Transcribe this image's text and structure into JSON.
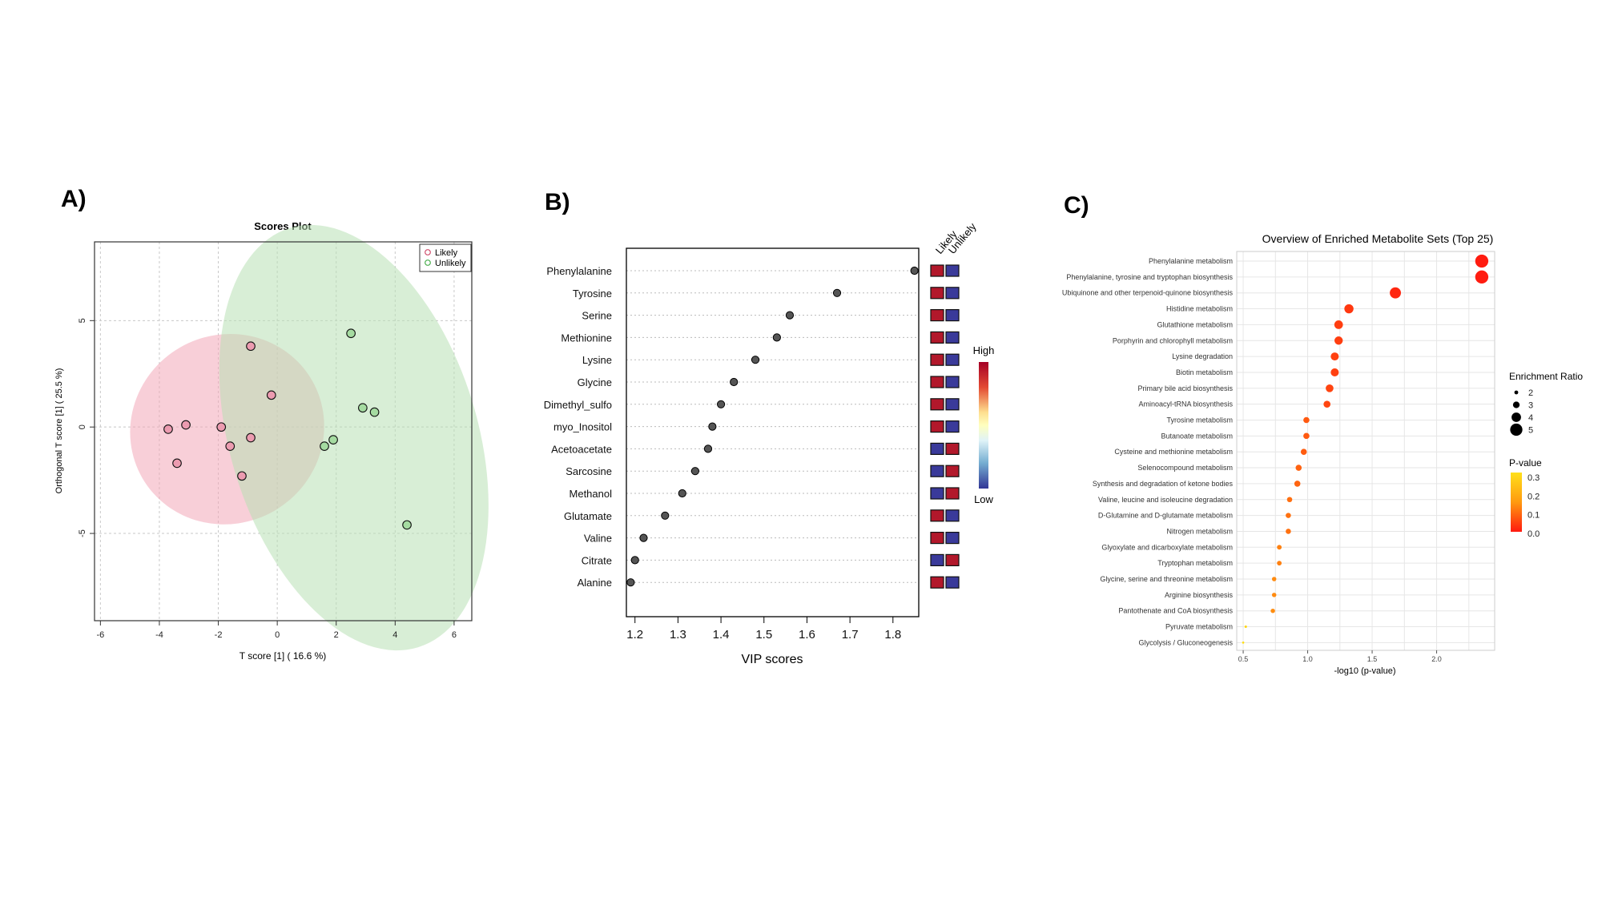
{
  "panels": {
    "a": {
      "label": "A)"
    },
    "b": {
      "label": "B)"
    },
    "c": {
      "label": "C)"
    }
  },
  "colors": {
    "likely": "#e48fa3",
    "unlikely": "#9cd49c",
    "heat_high": "#a50026",
    "heat_low": "#313695",
    "cell_red": "#b2182b",
    "cell_blue": "#3a3a9a"
  },
  "chart_data": [
    {
      "id": "scores",
      "type": "scatter",
      "title": "Scores Plot",
      "xlabel": "T score [1] ( 16.6 %)",
      "ylabel": "Orthogonal T score [1] ( 25.5 %)",
      "xlim": [
        -6.2,
        6.6
      ],
      "ylim": [
        -9.1,
        8.7
      ],
      "xticks": [
        -6,
        -4,
        -2,
        0,
        2,
        4,
        6
      ],
      "yticks": [
        -5,
        0,
        5
      ],
      "legend": [
        "Likely",
        "Unlikely"
      ],
      "series": [
        {
          "name": "Likely",
          "points": [
            [
              -0.9,
              3.8
            ],
            [
              -0.2,
              1.5
            ],
            [
              -3.1,
              0.1
            ],
            [
              -1.9,
              0.0
            ],
            [
              -3.7,
              -0.1
            ],
            [
              -0.9,
              -0.5
            ],
            [
              -1.6,
              -0.9
            ],
            [
              -3.4,
              -1.7
            ],
            [
              -1.2,
              -2.3
            ]
          ]
        },
        {
          "name": "Unlikely",
          "points": [
            [
              2.5,
              4.4
            ],
            [
              2.9,
              0.9
            ],
            [
              3.3,
              0.7
            ],
            [
              1.9,
              -0.6
            ],
            [
              1.6,
              -0.9
            ],
            [
              4.4,
              -4.6
            ]
          ]
        }
      ],
      "ellipses": [
        {
          "name": "Likely",
          "center": [
            -1.7,
            -0.1
          ],
          "rx": 3.2,
          "ry": 4.6,
          "rotation_deg": 60
        },
        {
          "name": "Unlikely",
          "center": [
            2.6,
            -0.5
          ],
          "rx": 4.2,
          "ry": 10.3,
          "rotation_deg": -17
        }
      ]
    },
    {
      "id": "vip",
      "type": "scatter",
      "xlabel": "VIP scores",
      "xlim": [
        1.18,
        1.86
      ],
      "xticks": [
        1.2,
        1.3,
        1.4,
        1.5,
        1.6,
        1.7,
        1.8
      ],
      "groups": [
        "Likely",
        "Unlikely"
      ],
      "colorbar": {
        "high": "High",
        "low": "Low"
      },
      "features": [
        {
          "name": "Phenylalanine",
          "vip": 1.85,
          "likely": "high",
          "unlikely": "low"
        },
        {
          "name": "Tyrosine",
          "vip": 1.67,
          "likely": "high",
          "unlikely": "low"
        },
        {
          "name": "Serine",
          "vip": 1.56,
          "likely": "high",
          "unlikely": "low"
        },
        {
          "name": "Methionine",
          "vip": 1.53,
          "likely": "high",
          "unlikely": "low"
        },
        {
          "name": "Lysine",
          "vip": 1.48,
          "likely": "high",
          "unlikely": "low"
        },
        {
          "name": "Glycine",
          "vip": 1.43,
          "likely": "high",
          "unlikely": "low"
        },
        {
          "name": "Dimethyl_sulfo",
          "vip": 1.4,
          "likely": "high",
          "unlikely": "low"
        },
        {
          "name": "myo_Inositol",
          "vip": 1.38,
          "likely": "high",
          "unlikely": "low"
        },
        {
          "name": "Acetoacetate",
          "vip": 1.37,
          "likely": "low",
          "unlikely": "high"
        },
        {
          "name": "Sarcosine",
          "vip": 1.34,
          "likely": "low",
          "unlikely": "high"
        },
        {
          "name": "Methanol",
          "vip": 1.31,
          "likely": "low",
          "unlikely": "high"
        },
        {
          "name": "Glutamate",
          "vip": 1.27,
          "likely": "high",
          "unlikely": "low"
        },
        {
          "name": "Valine",
          "vip": 1.22,
          "likely": "high",
          "unlikely": "low"
        },
        {
          "name": "Citrate",
          "vip": 1.2,
          "likely": "low",
          "unlikely": "high"
        },
        {
          "name": "Alanine",
          "vip": 1.19,
          "likely": "high",
          "unlikely": "low"
        }
      ]
    },
    {
      "id": "enrichment",
      "type": "scatter",
      "title": "Overview of Enriched Metabolite Sets (Top 25)",
      "xlabel": "-log10 (p-value)",
      "xlim": [
        0.45,
        2.45
      ],
      "xticks": [
        0.5,
        1.0,
        1.5,
        2.0
      ],
      "xtick_labels": [
        "0.5",
        "1.0",
        "1.5",
        "2.0"
      ],
      "legend_size_title": "Enrichment Ratio",
      "size_levels": [
        2,
        3,
        4,
        5
      ],
      "legend_color_title": "P-value",
      "color_levels": [
        "0.3",
        "0.2",
        "0.1",
        "0.0"
      ],
      "sets": [
        {
          "name": "Phenylalanine metabolism",
          "x": 2.35,
          "ratio": 5.3,
          "p": 0.004
        },
        {
          "name": "Phenylalanine, tyrosine and tryptophan biosynthesis",
          "x": 2.35,
          "ratio": 5.3,
          "p": 0.004
        },
        {
          "name": "Ubiquinone and other terpenoid-quinone biosynthesis",
          "x": 1.68,
          "ratio": 4.6,
          "p": 0.021
        },
        {
          "name": "Histidine metabolism",
          "x": 1.32,
          "ratio": 3.9,
          "p": 0.048
        },
        {
          "name": "Glutathione metabolism",
          "x": 1.24,
          "ratio": 3.7,
          "p": 0.058
        },
        {
          "name": "Porphyrin and chlorophyll metabolism",
          "x": 1.24,
          "ratio": 3.6,
          "p": 0.058
        },
        {
          "name": "Lysine degradation",
          "x": 1.21,
          "ratio": 3.5,
          "p": 0.062
        },
        {
          "name": "Biotin metabolism",
          "x": 1.21,
          "ratio": 3.5,
          "p": 0.062
        },
        {
          "name": "Primary bile acid biosynthesis",
          "x": 1.17,
          "ratio": 3.4,
          "p": 0.068
        },
        {
          "name": "Aminoacyl-tRNA biosynthesis",
          "x": 1.15,
          "ratio": 3.1,
          "p": 0.071
        },
        {
          "name": "Tyrosine metabolism",
          "x": 0.99,
          "ratio": 2.8,
          "p": 0.102
        },
        {
          "name": "Butanoate metabolism",
          "x": 0.99,
          "ratio": 2.8,
          "p": 0.102
        },
        {
          "name": "Cysteine and methionine metabolism",
          "x": 0.97,
          "ratio": 2.8,
          "p": 0.107
        },
        {
          "name": "Selenocompound metabolism",
          "x": 0.93,
          "ratio": 2.8,
          "p": 0.117
        },
        {
          "name": "Synthesis and degradation of ketone bodies",
          "x": 0.92,
          "ratio": 2.8,
          "p": 0.12
        },
        {
          "name": "Valine, leucine and isoleucine degradation",
          "x": 0.86,
          "ratio": 2.5,
          "p": 0.138
        },
        {
          "name": "D-Glutamine and D-glutamate metabolism",
          "x": 0.85,
          "ratio": 2.5,
          "p": 0.141
        },
        {
          "name": "Nitrogen metabolism",
          "x": 0.85,
          "ratio": 2.5,
          "p": 0.141
        },
        {
          "name": "Glyoxylate and dicarboxylate metabolism",
          "x": 0.78,
          "ratio": 2.3,
          "p": 0.166
        },
        {
          "name": "Tryptophan metabolism",
          "x": 0.78,
          "ratio": 2.3,
          "p": 0.166
        },
        {
          "name": "Glycine, serine and threonine metabolism",
          "x": 0.74,
          "ratio": 2.2,
          "p": 0.182
        },
        {
          "name": "Arginine biosynthesis",
          "x": 0.74,
          "ratio": 2.2,
          "p": 0.182
        },
        {
          "name": "Pantothenate and CoA biosynthesis",
          "x": 0.73,
          "ratio": 2.2,
          "p": 0.186
        },
        {
          "name": "Pyruvate metabolism",
          "x": 0.52,
          "ratio": 1.5,
          "p": 0.302
        },
        {
          "name": "Glycolysis / Gluconeogenesis",
          "x": 0.5,
          "ratio": 1.4,
          "p": 0.316
        }
      ]
    }
  ]
}
